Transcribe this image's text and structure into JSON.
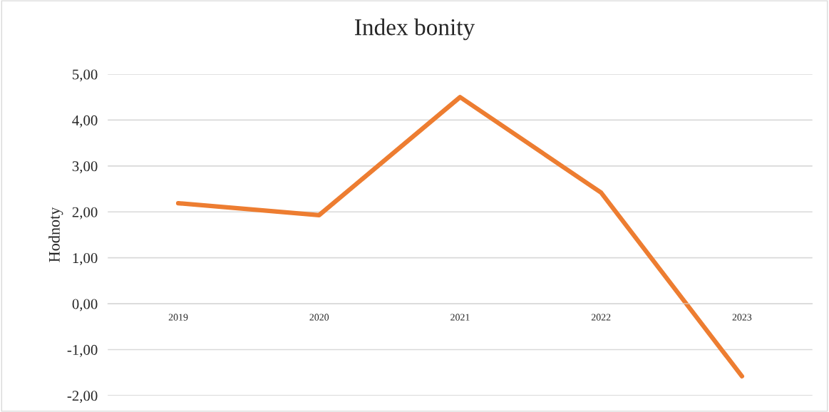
{
  "chart_data": {
    "type": "line",
    "title": "Index bonity",
    "ylabel": "Hodnoty",
    "categories": [
      "2019",
      "2020",
      "2021",
      "2022",
      "2023"
    ],
    "series": [
      {
        "color": "#ed7d31",
        "values": [
          2.19,
          1.93,
          4.5,
          2.42,
          -1.58
        ]
      }
    ],
    "ylim": [
      -2,
      5
    ],
    "yticks": [
      {
        "value": -2,
        "label": "-2,00"
      },
      {
        "value": -1,
        "label": "-1,00"
      },
      {
        "value": 0,
        "label": "0,00"
      },
      {
        "value": 1,
        "label": "1,00"
      },
      {
        "value": 2,
        "label": "2,00"
      },
      {
        "value": 3,
        "label": "3,00"
      },
      {
        "value": 4,
        "label": "4,00"
      },
      {
        "value": 5,
        "label": "5,00"
      }
    ],
    "grid": "y",
    "marker": "none",
    "line_style": "solid"
  }
}
